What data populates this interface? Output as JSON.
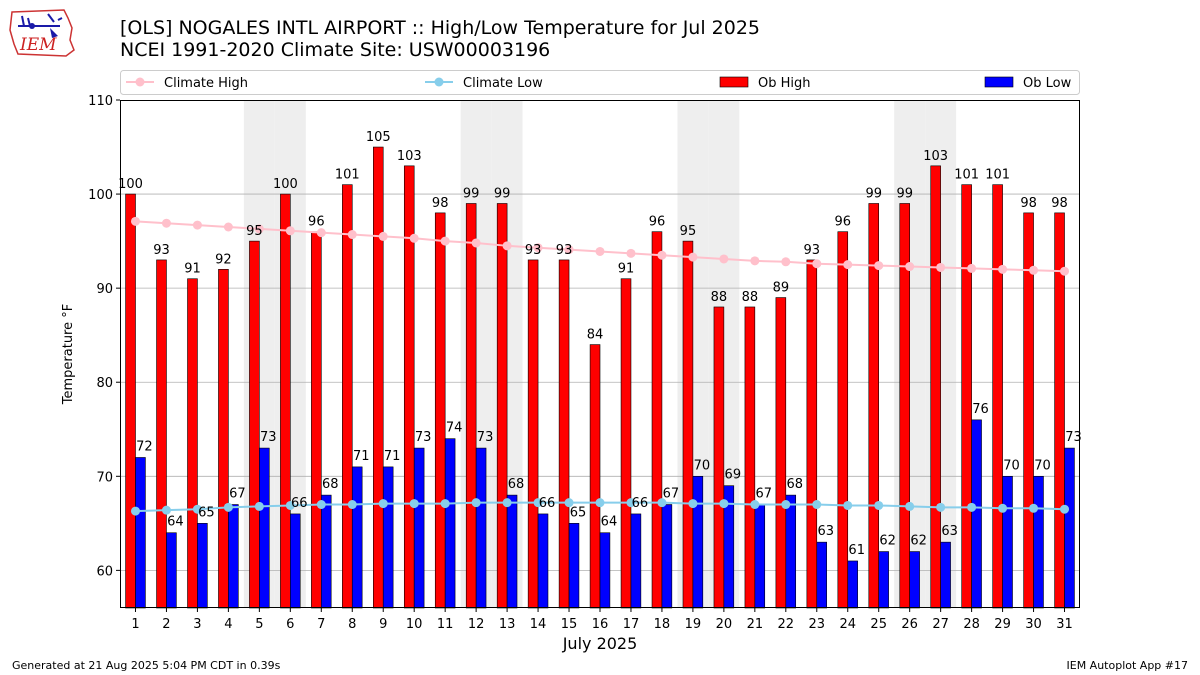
{
  "header": {
    "title_line1": "[OLS] NOGALES INTL AIRPORT :: High/Low Temperature for Jul 2025",
    "title_line2": "NCEI 1991-2020 Climate Site: USW00003196",
    "logo_text": "IEM"
  },
  "footer": {
    "generated": "Generated at 21 Aug 2025 5:04 PM CDT in 0.39s",
    "app": "IEM Autoplot App #17"
  },
  "colors": {
    "ob_high": "#ff0000",
    "ob_low": "#0000ff",
    "climate_high": "#ffc0cb",
    "climate_low": "#87ceeb",
    "weekend_shade": "#eeeeee",
    "grid": "#b0b0b0"
  },
  "chart_data": {
    "type": "bar",
    "xlabel": "July 2025",
    "ylabel": "Temperature °F",
    "ylim": [
      56,
      110
    ],
    "yticks": [
      60,
      70,
      80,
      90,
      100,
      110
    ],
    "grid": "horizontal",
    "legend_position": "top",
    "legend": [
      "Climate High",
      "Climate Low",
      "Ob High",
      "Ob Low"
    ],
    "categories": [
      "1",
      "2",
      "3",
      "4",
      "5",
      "6",
      "7",
      "8",
      "9",
      "10",
      "11",
      "12",
      "13",
      "14",
      "15",
      "16",
      "17",
      "18",
      "19",
      "20",
      "21",
      "22",
      "23",
      "24",
      "25",
      "26",
      "27",
      "28",
      "29",
      "30",
      "31"
    ],
    "shaded_days": [
      5,
      6,
      12,
      13,
      19,
      20,
      26,
      27
    ],
    "series": [
      {
        "name": "Ob High",
        "kind": "bar",
        "values": [
          100,
          93,
          91,
          92,
          95,
          100,
          96,
          101,
          105,
          103,
          98,
          99,
          99,
          93,
          93,
          84,
          91,
          96,
          95,
          88,
          88,
          89,
          93,
          96,
          99,
          99,
          103,
          101,
          101,
          98,
          98
        ]
      },
      {
        "name": "Ob Low",
        "kind": "bar",
        "values": [
          72,
          64,
          65,
          67,
          73,
          66,
          68,
          71,
          71,
          73,
          74,
          73,
          68,
          66,
          65,
          64,
          66,
          67,
          70,
          69,
          67,
          68,
          63,
          61,
          62,
          62,
          63,
          76,
          70,
          70,
          73
        ]
      },
      {
        "name": "Climate High",
        "kind": "line",
        "values": [
          97.1,
          96.9,
          96.7,
          96.5,
          96.3,
          96.1,
          95.9,
          95.7,
          95.5,
          95.3,
          95.0,
          94.8,
          94.5,
          94.3,
          94.1,
          93.9,
          93.7,
          93.5,
          93.3,
          93.1,
          92.9,
          92.8,
          92.6,
          92.5,
          92.4,
          92.3,
          92.2,
          92.1,
          92.0,
          91.9,
          91.8
        ]
      },
      {
        "name": "Climate Low",
        "kind": "line",
        "values": [
          66.3,
          66.4,
          66.5,
          66.7,
          66.8,
          66.9,
          67.0,
          67.0,
          67.1,
          67.1,
          67.1,
          67.2,
          67.2,
          67.2,
          67.2,
          67.2,
          67.2,
          67.2,
          67.1,
          67.1,
          67.0,
          67.0,
          67.0,
          66.9,
          66.9,
          66.8,
          66.7,
          66.7,
          66.6,
          66.6,
          66.5
        ]
      }
    ]
  }
}
